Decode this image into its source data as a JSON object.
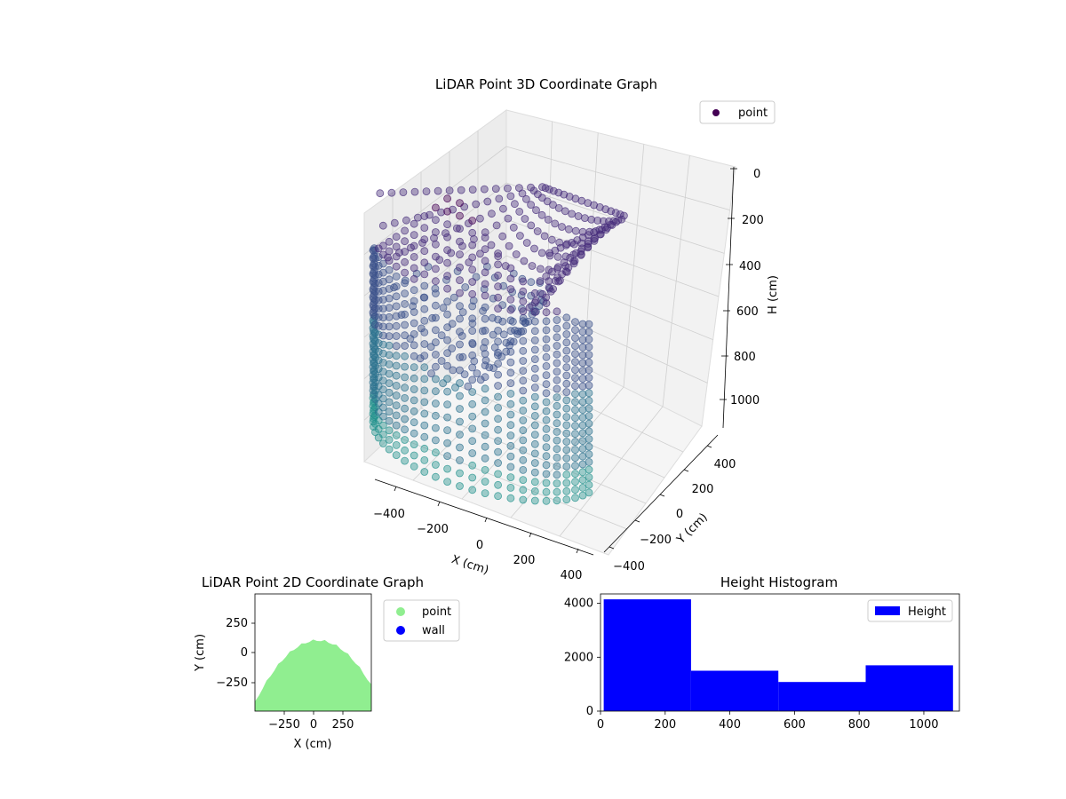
{
  "colors": {
    "scatter_dark": "#440154",
    "scatter_mid": "#3b528b",
    "scatter_teal": "#21918c",
    "point_2d": "#90ee90",
    "wall_2d": "#0000ff",
    "histogram": "#0000ff",
    "pane": "#f2f2f2",
    "grid": "#cccccc"
  },
  "chart_data": [
    {
      "type": "scatter",
      "subtype": "3d",
      "title": "LiDAR Point 3D Coordinate Graph",
      "xlabel": "X (cm)",
      "ylabel": "Y (cm)",
      "zlabel": "H (cm)",
      "x_ticks": [
        "−400",
        "−200",
        "0",
        "200",
        "400"
      ],
      "y_ticks": [
        "−400",
        "−200",
        "0",
        "200",
        "400"
      ],
      "z_ticks": [
        "0",
        "200",
        "400",
        "600",
        "800",
        "1000"
      ],
      "xlim": [
        -500,
        500
      ],
      "ylim": [
        -500,
        500
      ],
      "zlim": [
        0,
        1100
      ],
      "z_inverted": true,
      "legend": [
        "point"
      ],
      "legend_position": "top-right",
      "grid": true
    },
    {
      "type": "scatter",
      "title": "LiDAR Point 2D Coordinate Graph",
      "xlabel": "X (cm)",
      "ylabel": "Y (cm)",
      "x_ticks": [
        "−250",
        "0",
        "250"
      ],
      "y_ticks": [
        "250",
        "0",
        "−250"
      ],
      "xlim": [
        -500,
        500
      ],
      "ylim": [
        -500,
        500
      ],
      "legend": [
        "point",
        "wall"
      ],
      "legend_position": "outside-right",
      "grid": false
    },
    {
      "type": "bar",
      "subtype": "histogram",
      "title": "Height Histogram",
      "legend": [
        "Height"
      ],
      "legend_position": "top-right",
      "bin_edges": [
        10,
        280,
        550,
        820,
        1090
      ],
      "values": [
        4150,
        1500,
        1080,
        1700
      ],
      "x_ticks": [
        "0",
        "200",
        "400",
        "600",
        "800",
        "1000"
      ],
      "y_ticks": [
        "0",
        "2000",
        "4000"
      ],
      "xlim": [
        0,
        1110
      ],
      "ylim": [
        0,
        4350
      ],
      "grid": false
    }
  ]
}
